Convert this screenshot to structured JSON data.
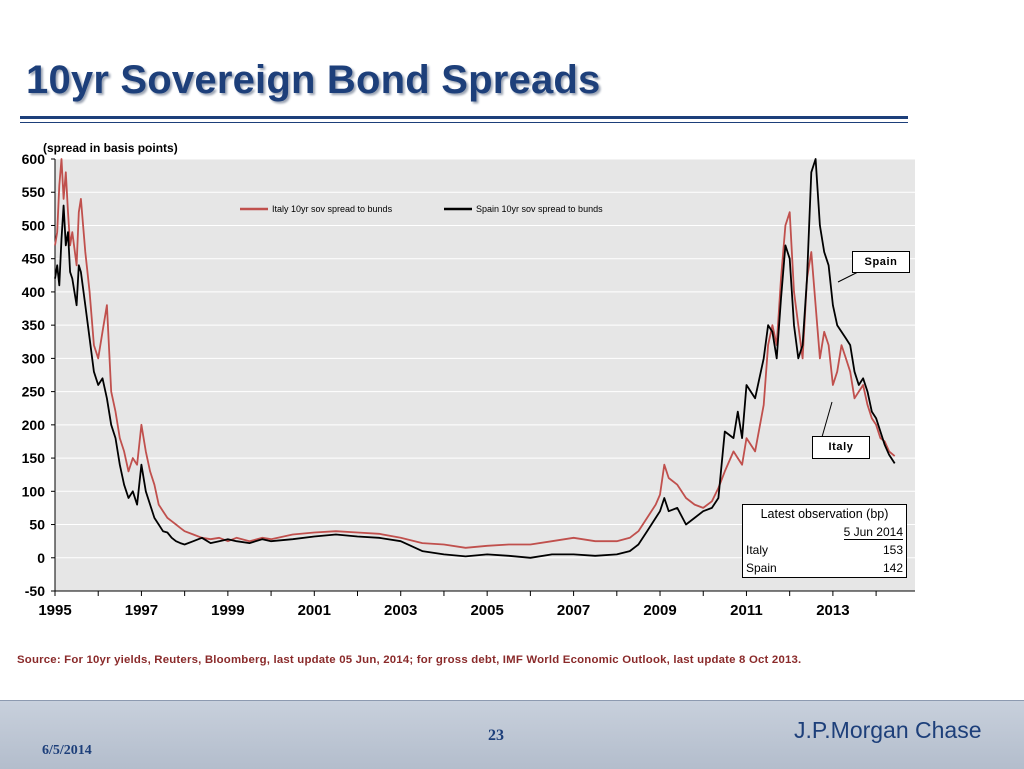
{
  "slide": {
    "title": "10yr Sovereign Bond Spreads",
    "source_note": "Source: For 10yr yields, Reuters, Bloomberg, last update 05 Jun, 2014; for gross debt, IMF World Economic Outlook, last update 8 Oct 2013.",
    "footer_date": "6/5/2014",
    "page_number": "23",
    "brand": "J.P.Morgan Chase"
  },
  "colors": {
    "italy": "#c0504d",
    "spain": "#000000",
    "plot_bg": "#e6e6e6",
    "title": "#1d3f7a"
  },
  "latest_table": {
    "header": "Latest observation (bp)",
    "date": "5 Jun 2014",
    "rows": [
      {
        "label": "Italy",
        "value": "153"
      },
      {
        "label": "Spain",
        "value": "142"
      }
    ]
  },
  "callouts": {
    "spain": "Spain",
    "italy": "Italy"
  },
  "chart_data": {
    "type": "line",
    "unit_note": "(spread in basis points)",
    "xlim": [
      1995,
      2014.9
    ],
    "ylim": [
      -50,
      600
    ],
    "yticks": [
      -50,
      0,
      50,
      100,
      150,
      200,
      250,
      300,
      350,
      400,
      450,
      500,
      550,
      600
    ],
    "xticks": [
      1995,
      1997,
      1999,
      2001,
      2003,
      2005,
      2007,
      2009,
      2011,
      2013
    ],
    "legend_position": "top-center",
    "grid": true,
    "series": [
      {
        "name": "Italy 10yr sov spread to bunds",
        "x": [
          1995.0,
          1995.05,
          1995.1,
          1995.15,
          1995.2,
          1995.25,
          1995.3,
          1995.35,
          1995.4,
          1995.5,
          1995.55,
          1995.6,
          1995.7,
          1995.8,
          1995.9,
          1996.0,
          1996.1,
          1996.2,
          1996.3,
          1996.4,
          1996.5,
          1996.6,
          1996.7,
          1996.8,
          1996.9,
          1997.0,
          1997.1,
          1997.2,
          1997.3,
          1997.4,
          1997.5,
          1997.6,
          1997.7,
          1997.8,
          1997.9,
          1998.0,
          1998.2,
          1998.4,
          1998.6,
          1998.8,
          1999.0,
          1999.2,
          1999.5,
          1999.8,
          2000.0,
          2000.5,
          2001.0,
          2001.5,
          2002.0,
          2002.5,
          2003.0,
          2003.5,
          2004.0,
          2004.5,
          2005.0,
          2005.5,
          2006.0,
          2006.5,
          2007.0,
          2007.5,
          2008.0,
          2008.3,
          2008.5,
          2008.7,
          2008.9,
          2009.0,
          2009.1,
          2009.2,
          2009.4,
          2009.6,
          2009.8,
          2010.0,
          2010.2,
          2010.35,
          2010.5,
          2010.7,
          2010.8,
          2010.9,
          2011.0,
          2011.2,
          2011.4,
          2011.5,
          2011.6,
          2011.7,
          2011.8,
          2011.9,
          2012.0,
          2012.1,
          2012.2,
          2012.3,
          2012.4,
          2012.5,
          2012.6,
          2012.7,
          2012.8,
          2012.9,
          2013.0,
          2013.1,
          2013.2,
          2013.3,
          2013.4,
          2013.5,
          2013.6,
          2013.7,
          2013.8,
          2013.9,
          2014.0,
          2014.1,
          2014.2,
          2014.3,
          2014.43
        ],
        "y": [
          470,
          490,
          560,
          600,
          540,
          580,
          520,
          470,
          490,
          440,
          520,
          540,
          460,
          400,
          320,
          300,
          340,
          380,
          250,
          220,
          180,
          160,
          130,
          150,
          140,
          200,
          160,
          130,
          110,
          80,
          70,
          60,
          55,
          50,
          45,
          40,
          35,
          30,
          28,
          30,
          25,
          30,
          25,
          30,
          28,
          35,
          38,
          40,
          38,
          36,
          30,
          22,
          20,
          15,
          18,
          20,
          20,
          25,
          30,
          25,
          25,
          30,
          40,
          60,
          80,
          95,
          140,
          120,
          110,
          90,
          80,
          75,
          85,
          105,
          130,
          160,
          150,
          140,
          180,
          160,
          230,
          320,
          350,
          320,
          420,
          500,
          520,
          400,
          350,
          300,
          420,
          460,
          380,
          300,
          340,
          320,
          260,
          280,
          320,
          300,
          280,
          240,
          250,
          260,
          230,
          210,
          200,
          180,
          175,
          160,
          153
        ]
      },
      {
        "name": "Spain 10yr sov spread to bunds",
        "x": [
          1995.0,
          1995.05,
          1995.1,
          1995.15,
          1995.2,
          1995.25,
          1995.3,
          1995.35,
          1995.4,
          1995.5,
          1995.55,
          1995.6,
          1995.7,
          1995.8,
          1995.9,
          1996.0,
          1996.1,
          1996.2,
          1996.3,
          1996.4,
          1996.5,
          1996.6,
          1996.7,
          1996.8,
          1996.9,
          1997.0,
          1997.1,
          1997.2,
          1997.3,
          1997.4,
          1997.5,
          1997.6,
          1997.7,
          1997.8,
          1997.9,
          1998.0,
          1998.2,
          1998.4,
          1998.6,
          1998.8,
          1999.0,
          1999.2,
          1999.5,
          1999.8,
          2000.0,
          2000.5,
          2001.0,
          2001.5,
          2002.0,
          2002.5,
          2003.0,
          2003.5,
          2004.0,
          2004.5,
          2005.0,
          2005.5,
          2006.0,
          2006.5,
          2007.0,
          2007.5,
          2008.0,
          2008.3,
          2008.5,
          2008.7,
          2008.9,
          2009.0,
          2009.1,
          2009.2,
          2009.4,
          2009.6,
          2009.8,
          2010.0,
          2010.2,
          2010.35,
          2010.5,
          2010.7,
          2010.8,
          2010.9,
          2011.0,
          2011.2,
          2011.4,
          2011.5,
          2011.6,
          2011.7,
          2011.8,
          2011.9,
          2012.0,
          2012.1,
          2012.2,
          2012.3,
          2012.4,
          2012.5,
          2012.6,
          2012.7,
          2012.8,
          2012.9,
          2013.0,
          2013.1,
          2013.2,
          2013.3,
          2013.4,
          2013.5,
          2013.6,
          2013.7,
          2013.8,
          2013.9,
          2014.0,
          2014.1,
          2014.2,
          2014.3,
          2014.43
        ],
        "y": [
          420,
          440,
          410,
          480,
          530,
          470,
          490,
          430,
          420,
          380,
          440,
          430,
          380,
          330,
          280,
          260,
          270,
          240,
          200,
          180,
          140,
          110,
          90,
          100,
          80,
          140,
          100,
          80,
          60,
          50,
          40,
          38,
          30,
          25,
          22,
          20,
          25,
          30,
          22,
          25,
          28,
          25,
          22,
          28,
          25,
          28,
          32,
          35,
          32,
          30,
          25,
          10,
          5,
          2,
          5,
          3,
          0,
          5,
          5,
          3,
          5,
          10,
          20,
          40,
          60,
          70,
          90,
          70,
          75,
          50,
          60,
          70,
          75,
          90,
          190,
          180,
          220,
          180,
          260,
          240,
          300,
          350,
          340,
          300,
          390,
          470,
          450,
          350,
          300,
          320,
          420,
          580,
          600,
          500,
          460,
          440,
          380,
          350,
          340,
          330,
          320,
          280,
          260,
          270,
          250,
          220,
          210,
          190,
          170,
          155,
          142
        ]
      }
    ]
  }
}
